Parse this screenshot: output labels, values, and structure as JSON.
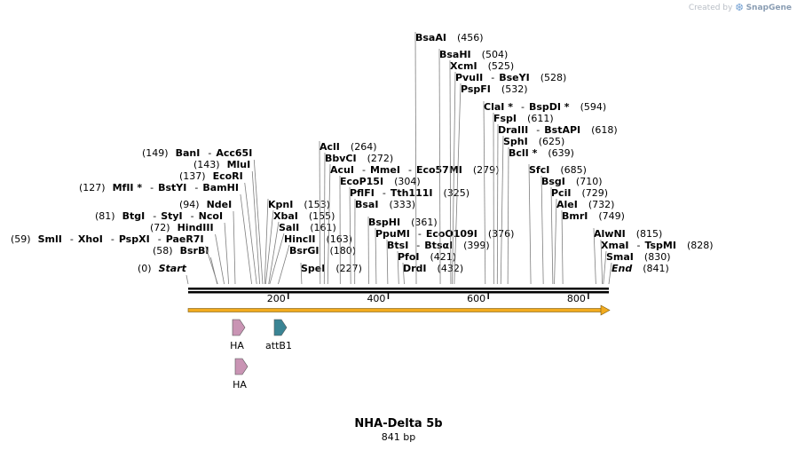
{
  "brand": {
    "created_by": "Created by",
    "product": "SnapGene",
    "logo_icon": "snapgene-logo-icon"
  },
  "title": "NHA-Delta 5b",
  "length_label": "841 bp",
  "sequence_length": 841,
  "ruler": {
    "ticks": [
      200,
      400,
      600,
      800
    ]
  },
  "sites": [
    {
      "pos": "(0)",
      "names": [
        "Start"
      ],
      "italic": true
    },
    {
      "pos": "(58)",
      "names": [
        "BsrBI"
      ]
    },
    {
      "pos": "(59)",
      "names": [
        "SmlI",
        "XhoI",
        "PspXI",
        "PaeR7I"
      ]
    },
    {
      "pos": "(72)",
      "names": [
        "HindIII"
      ]
    },
    {
      "pos": "(81)",
      "names": [
        "BtgI",
        "StyI",
        "NcoI"
      ]
    },
    {
      "pos": "(94)",
      "names": [
        "NdeI"
      ]
    },
    {
      "pos": "(127)",
      "names": [
        "MfII *",
        "BstYI",
        "BamHI"
      ]
    },
    {
      "pos": "(137)",
      "names": [
        "EcoRI"
      ]
    },
    {
      "pos": "(143)",
      "names": [
        "MluI"
      ]
    },
    {
      "pos": "(149)",
      "names": [
        "BanI",
        "Acc65I"
      ]
    },
    {
      "pos": "(153)",
      "names": [
        "KpnI"
      ]
    },
    {
      "pos": "(155)",
      "names": [
        "XbaI"
      ]
    },
    {
      "pos": "(161)",
      "names": [
        "SalI"
      ]
    },
    {
      "pos": "(163)",
      "names": [
        "HincII"
      ]
    },
    {
      "pos": "(180)",
      "names": [
        "BsrGI"
      ]
    },
    {
      "pos": "(227)",
      "names": [
        "SpeI"
      ]
    },
    {
      "pos": "(264)",
      "names": [
        "AclI"
      ]
    },
    {
      "pos": "(272)",
      "names": [
        "BbvCI"
      ]
    },
    {
      "pos": "(279)",
      "names": [
        "AcuI",
        "MmeI",
        "Eco57MI"
      ]
    },
    {
      "pos": "(304)",
      "names": [
        "EcoP15I"
      ]
    },
    {
      "pos": "(325)",
      "names": [
        "PflFI",
        "Tth111I"
      ]
    },
    {
      "pos": "(333)",
      "names": [
        "BsaI"
      ]
    },
    {
      "pos": "(361)",
      "names": [
        "BspHI"
      ]
    },
    {
      "pos": "(376)",
      "names": [
        "PpuMI",
        "EcoO109I"
      ]
    },
    {
      "pos": "(399)",
      "names": [
        "BtsI",
        "BtsαI"
      ]
    },
    {
      "pos": "(421)",
      "names": [
        "PfoI"
      ]
    },
    {
      "pos": "(432)",
      "names": [
        "DrdI"
      ]
    },
    {
      "pos": "(456)",
      "names": [
        "BsaAI"
      ]
    },
    {
      "pos": "(504)",
      "names": [
        "BsaHI"
      ]
    },
    {
      "pos": "(525)",
      "names": [
        "XcmI"
      ]
    },
    {
      "pos": "(528)",
      "names": [
        "PvuII",
        "BseYI"
      ]
    },
    {
      "pos": "(532)",
      "names": [
        "PspFI"
      ]
    },
    {
      "pos": "(594)",
      "names": [
        "ClaI *",
        "BspDI *"
      ]
    },
    {
      "pos": "(611)",
      "names": [
        "FspI"
      ]
    },
    {
      "pos": "(618)",
      "names": [
        "DraIII",
        "BstAPI"
      ]
    },
    {
      "pos": "(625)",
      "names": [
        "SphI"
      ]
    },
    {
      "pos": "(639)",
      "names": [
        "BclI *"
      ]
    },
    {
      "pos": "(685)",
      "names": [
        "SfcI"
      ]
    },
    {
      "pos": "(710)",
      "names": [
        "BsgI"
      ]
    },
    {
      "pos": "(729)",
      "names": [
        "PciI"
      ]
    },
    {
      "pos": "(732)",
      "names": [
        "AleI"
      ]
    },
    {
      "pos": "(749)",
      "names": [
        "BmrI"
      ]
    },
    {
      "pos": "(815)",
      "names": [
        "AlwNI"
      ]
    },
    {
      "pos": "(828)",
      "names": [
        "XmaI",
        "TspMI"
      ]
    },
    {
      "pos": "(830)",
      "names": [
        "SmaI"
      ]
    },
    {
      "pos": "(841)",
      "names": [
        "End"
      ],
      "italic": true
    }
  ],
  "features": [
    {
      "name": "HA",
      "color": "#c994b4",
      "bp": 97
    },
    {
      "name": "attB1",
      "color": "#3a8494",
      "bp": 180
    },
    {
      "name": "HA",
      "color": "#c994b4",
      "bp": 104
    }
  ],
  "backbone_arrow_color": "#f2ab1e"
}
